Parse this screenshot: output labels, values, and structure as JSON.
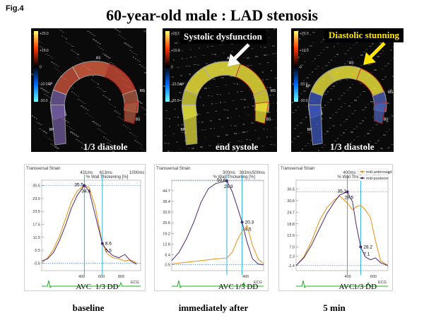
{
  "figure": {
    "label": "Fig.4",
    "title": "60-year-old male : LAD stenosis"
  },
  "echo_panels": [
    {
      "caption": "1/3 diastole",
      "callout": "",
      "scale_top": "+20.0",
      "scale_mid1": "+10.0",
      "scale_mid2": "0",
      "scale_mid3": "-10.0",
      "scale_bottom": "-20.0",
      "segments": [
        "AP",
        "AS",
        "MS",
        "BS",
        "BP"
      ]
    },
    {
      "caption": "end systole",
      "callout": "Systolic dysfunction",
      "scale_top": "+20.0",
      "scale_mid1": "+10.0",
      "scale_mid2": "0",
      "scale_mid3": "-10.0",
      "scale_bottom": "-20.0",
      "segments": [
        "AP",
        "AS",
        "MS",
        "BS",
        "BP"
      ]
    },
    {
      "caption": "1/3 diastole",
      "callout": "Diastolic stunning",
      "scale_top": "+20.0",
      "scale_mid1": "+10.0",
      "scale_mid2": "0",
      "scale_mid3": "-10.0",
      "scale_bottom": "-20.0",
      "segments": [
        "AP",
        "AS",
        "MS",
        "BS",
        "BP"
      ]
    }
  ],
  "legend": {
    "items": [
      "mid-anteroseptal",
      "mid-posterior"
    ]
  },
  "colors": {
    "orange": "#e8900c",
    "purple": "#4b2a6e",
    "yellow_arrow": "#ffe600",
    "cyan_line": "#19a8d6",
    "ecg": "#19b419"
  },
  "chart_data": [
    {
      "type": "line",
      "title": "Transversal Strain",
      "header": "% Wall Thickening [%]",
      "time_markers": [
        "431ms",
        "613ms",
        "1000ms"
      ],
      "xlim": [
        0,
        1000
      ],
      "yticks": [
        "35.5",
        "29.5",
        "23.5",
        "17.5",
        "11.5",
        "5.5",
        "-0.5"
      ],
      "ylim": [
        -4,
        38
      ],
      "avc_label": "AVC",
      "dd_label": "1/3 DD",
      "avc_x": 431,
      "dd_x": 613,
      "xticks": [
        "400",
        "600",
        "800"
      ],
      "ecg_label": "ECG",
      "labels": [
        "35.5",
        "34.6",
        "8.6",
        "5.5"
      ],
      "series": [
        {
          "name": "mid-anteroseptal",
          "x": [
            0,
            60,
            120,
            180,
            240,
            300,
            360,
            431,
            480,
            540,
            613,
            660,
            720,
            780,
            840,
            900,
            960
          ],
          "y": [
            -0.5,
            2.0,
            6.0,
            12.0,
            20.0,
            28.0,
            33.0,
            35.5,
            34.6,
            26.0,
            8.6,
            4.0,
            2.0,
            1.5,
            0.5,
            1.0,
            -0.5
          ]
        },
        {
          "name": "mid-posterior",
          "x": [
            0,
            60,
            120,
            180,
            240,
            300,
            360,
            431,
            480,
            540,
            613,
            660,
            720,
            780,
            840,
            900,
            960
          ],
          "y": [
            0.5,
            1.5,
            4.5,
            10.0,
            17.0,
            25.0,
            31.0,
            35.5,
            33.0,
            22.0,
            8.6,
            5.5,
            3.0,
            2.0,
            3.5,
            0.5,
            -1.0
          ]
        }
      ]
    },
    {
      "type": "line",
      "title": "Transversal Strain",
      "header": "% Wall Thickening [%]",
      "time_markers": [
        "300ms",
        "383ms",
        "500ms"
      ],
      "xlim": [
        0,
        500
      ],
      "yticks": [
        "44.7",
        "38.4",
        "32.0",
        "25.6",
        "19.2",
        "12.8",
        "6.4",
        "0.5"
      ],
      "ylim": [
        -3,
        51
      ],
      "avc_label": "AVC",
      "dd_label": "1/3 DD",
      "avc_x": 300,
      "dd_x": 383,
      "xticks": [
        "400"
      ],
      "ecg_label": "ECG",
      "labels": [
        "50.6",
        "25.9",
        "20.3",
        "4.5"
      ],
      "series": [
        {
          "name": "mid-anteroseptal",
          "x": [
            0,
            40,
            80,
            120,
            160,
            200,
            240,
            300,
            330,
            360,
            383,
            410,
            440,
            470,
            500
          ],
          "y": [
            1.0,
            1.5,
            2.0,
            2.5,
            3.0,
            3.5,
            4.0,
            4.5,
            8.0,
            16.0,
            20.3,
            24.0,
            12.0,
            4.0,
            1.0
          ]
        },
        {
          "name": "mid-posterior",
          "x": [
            0,
            40,
            80,
            120,
            160,
            200,
            240,
            300,
            330,
            360,
            383,
            410,
            440,
            470,
            500
          ],
          "y": [
            3.0,
            8.0,
            16.0,
            26.0,
            38.0,
            46.0,
            49.0,
            50.6,
            44.0,
            34.0,
            25.9,
            14.0,
            4.0,
            1.0,
            0.5
          ]
        }
      ]
    },
    {
      "type": "line",
      "title": "Transversal Strain",
      "header": "% Wall Thickening [%]",
      "time_markers": [
        "400ms",
        "504ms",
        "717ms"
      ],
      "xlim": [
        0,
        717
      ],
      "yticks": [
        "36.5",
        "30.6",
        "24.7",
        "18.8",
        "12.9",
        "7.0",
        "2.3",
        "-2.4"
      ],
      "ylim": [
        -5,
        41
      ],
      "avc_label": "AVC",
      "dd_label": "1/3 DD",
      "avc_x": 400,
      "dd_x": 504,
      "xticks": [
        "400",
        "600"
      ],
      "ecg_label": "ECG",
      "labels": [
        "35.1",
        "29.5",
        "28.2",
        "7.1"
      ],
      "series": [
        {
          "name": "mid-anteroseptal",
          "x": [
            0,
            60,
            120,
            180,
            240,
            300,
            340,
            400,
            440,
            470,
            504,
            540,
            580,
            620,
            660,
            717
          ],
          "y": [
            -2.4,
            2.0,
            10.0,
            20.0,
            27.0,
            31.0,
            33.0,
            29.5,
            26.0,
            27.5,
            28.2,
            26.0,
            22.0,
            10.0,
            0.0,
            -2.4
          ]
        },
        {
          "name": "mid-posterior",
          "x": [
            0,
            60,
            120,
            180,
            240,
            300,
            340,
            400,
            440,
            470,
            504,
            540,
            580,
            620,
            660,
            717
          ],
          "y": [
            -2.4,
            1.5,
            8.0,
            16.0,
            24.0,
            30.0,
            33.5,
            35.1,
            30.0,
            18.0,
            7.1,
            2.0,
            0.5,
            1.5,
            -1.0,
            -2.4
          ]
        }
      ]
    }
  ],
  "bottom_labels": [
    "baseline",
    "immediately after",
    "5 min"
  ]
}
